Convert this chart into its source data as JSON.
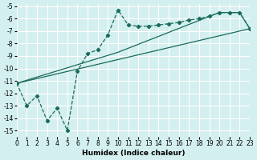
{
  "xlabel": "Humidex (Indice chaleur)",
  "bg_color": "#d4efef",
  "grid_color": "#ffffff",
  "line_color": "#1a6b5a",
  "xlim": [
    0,
    23
  ],
  "ylim": [
    -15.5,
    -4.8
  ],
  "xticks": [
    0,
    1,
    2,
    3,
    4,
    5,
    6,
    7,
    8,
    9,
    10,
    11,
    12,
    13,
    14,
    15,
    16,
    17,
    18,
    19,
    20,
    21,
    22,
    23
  ],
  "yticks": [
    -5,
    -6,
    -7,
    -8,
    -9,
    -10,
    -11,
    -12,
    -13,
    -14,
    -15
  ],
  "series1_x": [
    0,
    1,
    2,
    3,
    4,
    5,
    6,
    7,
    8,
    9,
    10,
    11,
    12,
    13,
    14,
    15,
    16,
    17,
    18,
    19,
    20,
    21,
    22,
    23
  ],
  "series1_y": [
    -11.2,
    -13.0,
    -12.2,
    -14.2,
    -13.2,
    -15.0,
    -10.2,
    -8.8,
    -8.5,
    -7.3,
    -5.3,
    -6.5,
    -6.6,
    -6.6,
    -6.5,
    -6.4,
    -6.3,
    -6.1,
    -6.0,
    -5.8,
    -5.5,
    -5.5,
    -5.5,
    -6.8
  ],
  "series2_x": [
    0,
    23
  ],
  "series2_y": [
    -11.2,
    -6.8
  ],
  "series3_x": [
    0,
    10,
    15,
    20,
    21,
    22,
    23
  ],
  "series3_y": [
    -11.2,
    -8.7,
    -7.1,
    -5.5,
    -5.5,
    -5.5,
    -6.8
  ]
}
